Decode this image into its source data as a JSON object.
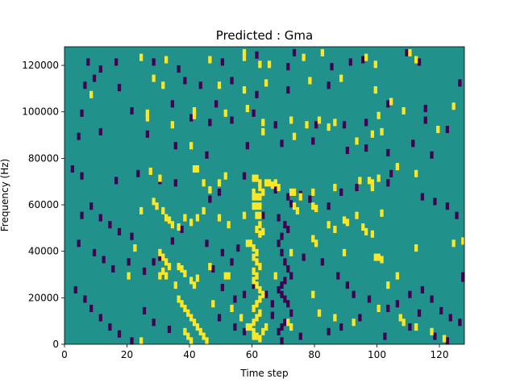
{
  "chart_data": {
    "type": "heatmap",
    "title": "Predicted : Gma",
    "xlabel": "Time step",
    "ylabel": "Frequency (Hz)",
    "xlim": [
      0,
      128
    ],
    "ylim": [
      0,
      128000
    ],
    "xticks": [
      0,
      20,
      40,
      60,
      80,
      100,
      120
    ],
    "yticks": [
      0,
      20000,
      40000,
      60000,
      80000,
      100000,
      120000
    ],
    "grid": false,
    "legend": "none",
    "colors": {
      "background": "#21918c",
      "high": "#fde725",
      "low": "#440154"
    },
    "rows": 128,
    "cols": 128,
    "description_cells": "cells with value 1 are bright (yellow), -1 dark (purple), 0 background (teal); listed as [time_step, frequency_bin] with bin size 1000 Hz",
    "high_cells": [
      [
        24,
        124
      ],
      [
        32,
        123
      ],
      [
        46,
        123
      ],
      [
        57,
        126
      ],
      [
        57,
        124
      ],
      [
        62,
        121
      ],
      [
        65,
        121
      ],
      [
        76,
        124
      ],
      [
        82,
        126
      ],
      [
        96,
        124
      ],
      [
        99,
        121
      ],
      [
        110,
        126
      ],
      [
        112,
        123
      ],
      [
        8,
        108
      ],
      [
        28,
        115
      ],
      [
        31,
        112
      ],
      [
        49,
        112
      ],
      [
        57,
        110
      ],
      [
        64,
        113
      ],
      [
        78,
        114
      ],
      [
        88,
        115
      ],
      [
        99,
        110
      ],
      [
        104,
        105
      ],
      [
        124,
        103
      ],
      [
        26,
        100
      ],
      [
        26,
        98
      ],
      [
        41,
        101
      ],
      [
        41,
        99
      ],
      [
        51,
        100
      ],
      [
        58,
        102
      ],
      [
        72,
        97
      ],
      [
        77,
        95
      ],
      [
        86,
        96
      ],
      [
        100,
        99
      ],
      [
        108,
        101
      ],
      [
        34,
        95
      ],
      [
        40,
        86
      ],
      [
        63,
        96
      ],
      [
        63,
        92
      ],
      [
        73,
        90
      ],
      [
        81,
        97
      ],
      [
        84,
        94
      ],
      [
        93,
        88
      ],
      [
        98,
        91
      ],
      [
        101,
        92
      ],
      [
        119,
        93
      ],
      [
        27,
        75
      ],
      [
        30,
        72
      ],
      [
        41,
        76
      ],
      [
        42,
        76
      ],
      [
        49,
        70
      ],
      [
        51,
        73
      ],
      [
        60,
        72
      ],
      [
        61,
        72
      ],
      [
        62,
        70
      ],
      [
        62,
        68
      ],
      [
        63,
        66
      ],
      [
        64,
        70
      ],
      [
        65,
        70
      ],
      [
        66,
        69
      ],
      [
        67,
        70
      ],
      [
        68,
        68
      ],
      [
        72,
        66
      ],
      [
        73,
        66
      ],
      [
        75,
        64
      ],
      [
        79,
        66
      ],
      [
        86,
        68
      ],
      [
        94,
        71
      ],
      [
        97,
        71
      ],
      [
        98,
        70
      ],
      [
        98,
        68
      ],
      [
        100,
        72
      ],
      [
        112,
        74
      ],
      [
        106,
        77
      ],
      [
        24,
        58
      ],
      [
        28,
        62
      ],
      [
        29,
        60
      ],
      [
        31,
        58
      ],
      [
        32,
        55
      ],
      [
        33,
        54
      ],
      [
        34,
        52
      ],
      [
        36,
        51
      ],
      [
        38,
        55
      ],
      [
        40,
        53
      ],
      [
        42,
        55
      ],
      [
        44,
        58
      ],
      [
        49,
        55
      ],
      [
        52,
        52
      ],
      [
        57,
        56
      ],
      [
        60,
        66
      ],
      [
        60,
        64
      ],
      [
        61,
        64
      ],
      [
        62,
        64
      ],
      [
        60,
        60
      ],
      [
        61,
        60
      ],
      [
        62,
        60
      ],
      [
        61,
        56
      ],
      [
        62,
        56
      ],
      [
        62,
        52
      ],
      [
        61,
        50
      ],
      [
        62,
        48
      ],
      [
        63,
        49
      ],
      [
        73,
        60
      ],
      [
        74,
        58
      ],
      [
        79,
        60
      ],
      [
        80,
        59
      ],
      [
        84,
        52
      ],
      [
        86,
        50
      ],
      [
        89,
        54
      ],
      [
        90,
        53
      ],
      [
        93,
        56
      ],
      [
        95,
        51
      ],
      [
        96,
        49
      ],
      [
        98,
        48
      ],
      [
        101,
        57
      ],
      [
        22,
        42
      ],
      [
        30,
        40
      ],
      [
        31,
        38
      ],
      [
        32,
        36
      ],
      [
        33,
        34
      ],
      [
        31,
        32
      ],
      [
        30,
        30
      ],
      [
        32,
        30
      ],
      [
        36,
        34
      ],
      [
        37,
        33
      ],
      [
        38,
        31
      ],
      [
        40,
        28
      ],
      [
        41,
        26
      ],
      [
        42,
        29
      ],
      [
        46,
        34
      ],
      [
        51,
        30
      ],
      [
        52,
        30
      ],
      [
        58,
        44
      ],
      [
        59,
        44
      ],
      [
        60,
        42
      ],
      [
        61,
        40
      ],
      [
        60,
        38
      ],
      [
        61,
        36
      ],
      [
        62,
        34
      ],
      [
        60,
        32
      ],
      [
        61,
        30
      ],
      [
        60,
        28
      ],
      [
        61,
        26
      ],
      [
        62,
        24
      ],
      [
        63,
        22
      ],
      [
        62,
        20
      ],
      [
        61,
        18
      ],
      [
        60,
        16
      ],
      [
        62,
        14
      ],
      [
        61,
        12
      ],
      [
        60,
        10
      ],
      [
        59,
        8
      ],
      [
        60,
        6
      ],
      [
        61,
        4
      ],
      [
        62,
        3
      ],
      [
        63,
        6
      ],
      [
        64,
        8
      ],
      [
        67,
        30
      ],
      [
        72,
        40
      ],
      [
        79,
        46
      ],
      [
        80,
        44
      ],
      [
        89,
        40
      ],
      [
        99,
        38
      ],
      [
        100,
        38
      ],
      [
        101,
        37
      ],
      [
        112,
        42
      ],
      [
        124,
        44
      ],
      [
        128,
        45
      ],
      [
        20,
        30
      ],
      [
        35,
        26
      ],
      [
        36,
        20
      ],
      [
        37,
        18
      ],
      [
        38,
        16
      ],
      [
        39,
        14
      ],
      [
        40,
        12
      ],
      [
        41,
        10
      ],
      [
        42,
        8
      ],
      [
        43,
        6
      ],
      [
        44,
        4
      ],
      [
        45,
        2
      ],
      [
        38,
        6
      ],
      [
        39,
        4
      ],
      [
        40,
        2
      ],
      [
        47,
        18
      ],
      [
        53,
        16
      ],
      [
        56,
        12
      ],
      [
        58,
        8
      ],
      [
        60,
        4
      ],
      [
        71,
        10
      ],
      [
        72,
        8
      ],
      [
        79,
        22
      ],
      [
        81,
        14
      ],
      [
        86,
        12
      ],
      [
        92,
        10
      ],
      [
        100,
        16
      ],
      [
        103,
        26
      ],
      [
        106,
        30
      ],
      [
        107,
        12
      ],
      [
        108,
        10
      ],
      [
        112,
        8
      ],
      [
        117,
        6
      ],
      [
        121,
        3
      ],
      [
        24,
        2
      ],
      [
        44,
        70
      ],
      [
        46,
        67
      ]
    ],
    "low_cells": [
      [
        7,
        122
      ],
      [
        11,
        119
      ],
      [
        16,
        122
      ],
      [
        28,
        122
      ],
      [
        36,
        119
      ],
      [
        50,
        122
      ],
      [
        61,
        125
      ],
      [
        71,
        120
      ],
      [
        73,
        126
      ],
      [
        85,
        120
      ],
      [
        91,
        122
      ],
      [
        95,
        123
      ],
      [
        109,
        126
      ],
      [
        113,
        122
      ],
      [
        6,
        112
      ],
      [
        9,
        115
      ],
      [
        17,
        111
      ],
      [
        38,
        114
      ],
      [
        43,
        112
      ],
      [
        48,
        104
      ],
      [
        53,
        114
      ],
      [
        61,
        108
      ],
      [
        71,
        110
      ],
      [
        84,
        112
      ],
      [
        103,
        104
      ],
      [
        115,
        102
      ],
      [
        126,
        113
      ],
      [
        5,
        100
      ],
      [
        21,
        101
      ],
      [
        34,
        104
      ],
      [
        40,
        98
      ],
      [
        46,
        96
      ],
      [
        53,
        97
      ],
      [
        60,
        100
      ],
      [
        67,
        95
      ],
      [
        80,
        95
      ],
      [
        89,
        95
      ],
      [
        96,
        96
      ],
      [
        115,
        97
      ],
      [
        122,
        93
      ],
      [
        4,
        90
      ],
      [
        11,
        92
      ],
      [
        26,
        91
      ],
      [
        35,
        86
      ],
      [
        45,
        82
      ],
      [
        58,
        86
      ],
      [
        69,
        87
      ],
      [
        79,
        88
      ],
      [
        90,
        84
      ],
      [
        96,
        85
      ],
      [
        103,
        83
      ],
      [
        111,
        87
      ],
      [
        117,
        82
      ],
      [
        2,
        76
      ],
      [
        5,
        73
      ],
      [
        16,
        71
      ],
      [
        23,
        74
      ],
      [
        30,
        71
      ],
      [
        35,
        70
      ],
      [
        46,
        63
      ],
      [
        49,
        66
      ],
      [
        57,
        73
      ],
      [
        67,
        67
      ],
      [
        71,
        64
      ],
      [
        72,
        61
      ],
      [
        75,
        65
      ],
      [
        78,
        63
      ],
      [
        84,
        60
      ],
      [
        88,
        66
      ],
      [
        93,
        68
      ],
      [
        103,
        70
      ],
      [
        104,
        74
      ],
      [
        114,
        64
      ],
      [
        118,
        62
      ],
      [
        122,
        60
      ],
      [
        125,
        56
      ],
      [
        5,
        56
      ],
      [
        8,
        60
      ],
      [
        11,
        55
      ],
      [
        14,
        52
      ],
      [
        17,
        49
      ],
      [
        21,
        47
      ],
      [
        34,
        45
      ],
      [
        37,
        50
      ],
      [
        45,
        44
      ],
      [
        50,
        40
      ],
      [
        53,
        36
      ],
      [
        55,
        42
      ],
      [
        63,
        56
      ],
      [
        68,
        55
      ],
      [
        70,
        52
      ],
      [
        71,
        50
      ],
      [
        69,
        47
      ],
      [
        68,
        44
      ],
      [
        69,
        40
      ],
      [
        70,
        36
      ],
      [
        71,
        33
      ],
      [
        72,
        30
      ],
      [
        70,
        28
      ],
      [
        69,
        26
      ],
      [
        68,
        24
      ],
      [
        69,
        22
      ],
      [
        70,
        20
      ],
      [
        71,
        18
      ],
      [
        72,
        14
      ],
      [
        70,
        10
      ],
      [
        69,
        8
      ],
      [
        68,
        6
      ],
      [
        69,
        2
      ],
      [
        76,
        38
      ],
      [
        82,
        36
      ],
      [
        87,
        30
      ],
      [
        90,
        26
      ],
      [
        92,
        22
      ],
      [
        97,
        20
      ],
      [
        103,
        16
      ],
      [
        106,
        18
      ],
      [
        110,
        22
      ],
      [
        114,
        24
      ],
      [
        117,
        20
      ],
      [
        120,
        15
      ],
      [
        123,
        12
      ],
      [
        126,
        10
      ],
      [
        127,
        29
      ],
      [
        128,
        30
      ],
      [
        4,
        44
      ],
      [
        9,
        40
      ],
      [
        12,
        37
      ],
      [
        15,
        33
      ],
      [
        20,
        36
      ],
      [
        25,
        32
      ],
      [
        28,
        36
      ],
      [
        30,
        38
      ],
      [
        47,
        33
      ],
      [
        50,
        25
      ],
      [
        54,
        20
      ],
      [
        57,
        22
      ],
      [
        60,
        26
      ],
      [
        64,
        22
      ],
      [
        66,
        18
      ],
      [
        3,
        24
      ],
      [
        6,
        20
      ],
      [
        8,
        16
      ],
      [
        11,
        12
      ],
      [
        14,
        8
      ],
      [
        17,
        5
      ],
      [
        21,
        2
      ],
      [
        25,
        15
      ],
      [
        28,
        10
      ],
      [
        33,
        7
      ],
      [
        39,
        4
      ],
      [
        49,
        12
      ],
      [
        54,
        8
      ],
      [
        57,
        6
      ],
      [
        66,
        13
      ],
      [
        75,
        4
      ],
      [
        84,
        6
      ],
      [
        88,
        8
      ],
      [
        94,
        12
      ],
      [
        102,
        4
      ],
      [
        110,
        8
      ],
      [
        113,
        14
      ],
      [
        118,
        4
      ],
      [
        122,
        2
      ]
    ]
  }
}
